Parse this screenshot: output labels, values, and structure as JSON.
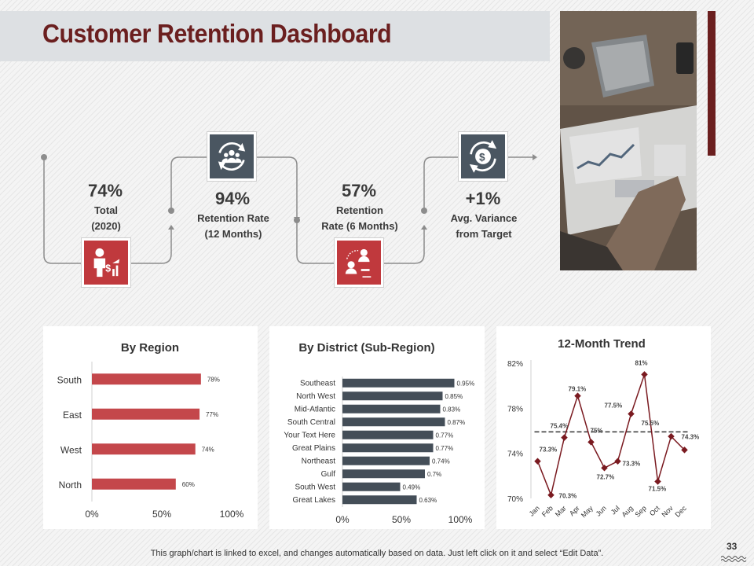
{
  "page": {
    "title": "Customer Retention Dashboard",
    "page_number": "33",
    "footnote": "This graph/chart is linked to excel, and changes automatically based on data. Just left click on it and select “Edit Data”."
  },
  "colors": {
    "maroon": "#6b1f1f",
    "red": "#c0393d",
    "slate": "#4a5661",
    "bar_red": "#c4474b",
    "bar_slate": "#444e58",
    "line": "#7a1a20"
  },
  "kpis": [
    {
      "value": "74%",
      "label": "Total\n(2020)",
      "icon": "person-money-growth-icon"
    },
    {
      "value": "94%",
      "label": "Retention Rate\n(12 Months)",
      "icon": "people-refresh-icon"
    },
    {
      "value": "57%",
      "label": "Retention\nRate (6 Months)",
      "icon": "people-exchange-icon"
    },
    {
      "value": "+1%",
      "label": "Avg. Variance\nfrom Target",
      "icon": "dollar-gear-icon"
    }
  ],
  "chart_data": [
    {
      "type": "bar",
      "orientation": "horizontal",
      "title": "By Region",
      "categories": [
        "South",
        "East",
        "West",
        "North"
      ],
      "values": [
        78,
        77,
        74,
        60
      ],
      "value_labels": [
        "78%",
        "77%",
        "74%",
        "60%"
      ],
      "xlim": [
        0,
        100
      ],
      "x_ticks": [
        "0%",
        "50%",
        "100%"
      ],
      "grid": false
    },
    {
      "type": "bar",
      "orientation": "horizontal",
      "title": "By District (Sub-Region)",
      "categories": [
        "Southeast",
        "North West",
        "Mid-Atlantic",
        "South Central",
        "Your Text Here",
        "Great Plains",
        "Northeast",
        "Gulf",
        "South West",
        "Great Lakes"
      ],
      "values": [
        0.95,
        0.85,
        0.83,
        0.87,
        0.77,
        0.77,
        0.74,
        0.7,
        0.49,
        0.63
      ],
      "value_labels": [
        "0.95%",
        "0.85%",
        "0.83%",
        "0.87%",
        "0.77%",
        "0.77%",
        "0.74%",
        "0.7%",
        "0.49%",
        "0.63%"
      ],
      "bar_lengths": [
        95,
        85,
        83,
        87,
        77,
        77,
        74,
        70,
        49,
        63
      ],
      "xlim": [
        0,
        100
      ],
      "x_ticks": [
        "0%",
        "50%",
        "100%"
      ],
      "grid": false
    },
    {
      "type": "line",
      "title": "12-Month Trend",
      "categories": [
        "Jan",
        "Feb",
        "Mar",
        "Apr",
        "May",
        "Jun",
        "Jul",
        "Aug",
        "Sep",
        "Oct",
        "Nov",
        "Dec"
      ],
      "values": [
        73.3,
        70.3,
        75.4,
        79.1,
        75,
        72.7,
        73.3,
        77.5,
        81,
        71.5,
        75.5,
        74.3
      ],
      "value_labels": [
        "73.3%",
        "70.3%",
        "75.4%",
        "79.1%",
        "75%",
        "72.7%",
        "73.3%",
        "77.5%",
        "81%",
        "71.5%",
        "75.5%",
        "74.3%"
      ],
      "target": 75.9,
      "ylim": [
        70,
        82
      ],
      "y_ticks": [
        "70%",
        "74%",
        "78%",
        "82%"
      ],
      "grid": false
    }
  ]
}
